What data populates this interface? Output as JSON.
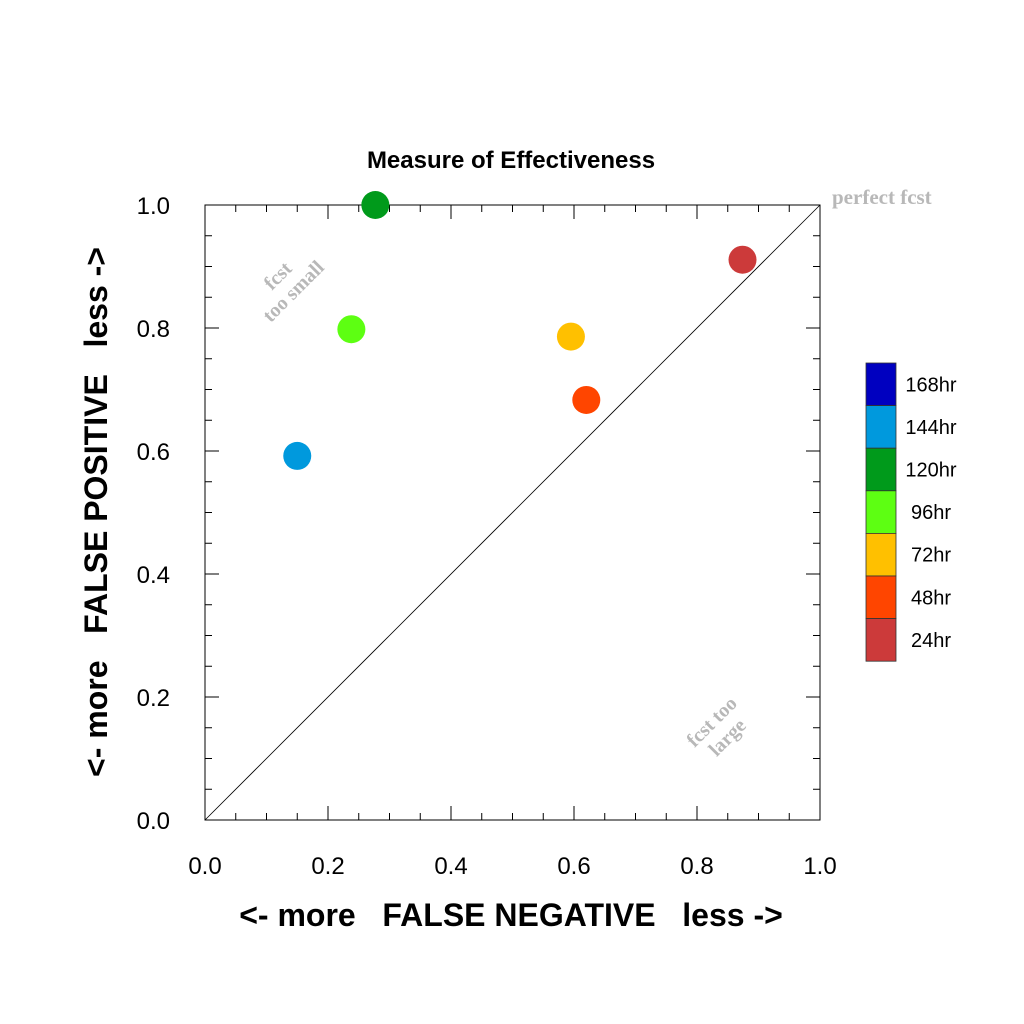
{
  "chart_data": {
    "type": "scatter",
    "title": "Measure of Effectiveness",
    "xlabel": "<- more   FALSE NEGATIVE   less ->",
    "ylabel": "<- more   FALSE POSITIVE   less ->",
    "xlim": [
      0,
      1
    ],
    "ylim": [
      0,
      1
    ],
    "x_ticks": [
      "0.0",
      "0.2",
      "0.4",
      "0.6",
      "0.8",
      "1.0"
    ],
    "y_ticks": [
      "0.0",
      "0.2",
      "0.4",
      "0.6",
      "0.8",
      "1.0"
    ],
    "grid": false,
    "diagonal_line": true,
    "annotations": {
      "perfect": "perfect fcst",
      "too_small": [
        "fcst",
        "too small"
      ],
      "too_large": [
        "fcst too",
        "large"
      ]
    },
    "legend_position": "right",
    "legend": [
      {
        "name": "168hr",
        "color": "#0000c0"
      },
      {
        "name": "144hr",
        "color": "#0099dd"
      },
      {
        "name": "120hr",
        "color": "#009a1b"
      },
      {
        "name": "96hr",
        "color": "#5dff12"
      },
      {
        "name": "72hr",
        "color": "#ffc000"
      },
      {
        "name": "48hr",
        "color": "#ff4500"
      },
      {
        "name": "24hr",
        "color": "#cc3a3a"
      }
    ],
    "points": [
      {
        "series": "144hr",
        "x": 0.15,
        "y": 0.592,
        "color": "#0099dd"
      },
      {
        "series": "120hr",
        "x": 0.277,
        "y": 1.0,
        "color": "#009a1b"
      },
      {
        "series": "96hr",
        "x": 0.238,
        "y": 0.798,
        "color": "#5dff12"
      },
      {
        "series": "72hr",
        "x": 0.595,
        "y": 0.786,
        "color": "#ffc000"
      },
      {
        "series": "48hr",
        "x": 0.62,
        "y": 0.683,
        "color": "#ff4500"
      },
      {
        "series": "24hr",
        "x": 0.874,
        "y": 0.911,
        "color": "#cc3a3a"
      }
    ]
  }
}
